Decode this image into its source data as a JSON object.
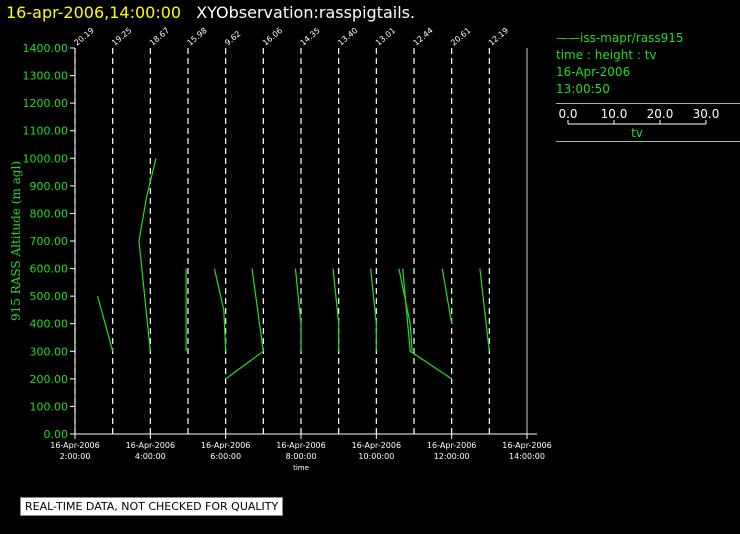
{
  "header": {
    "timestamp": "16-apr-2006,14:00:00",
    "title": "XYObservation:rasspigtails."
  },
  "legend": {
    "series_label": "iss-mapr/rass915",
    "mapping": "time : height : tv",
    "date": "16-Apr-2006",
    "time": "13:00:50",
    "scale_ticks": [
      "0.0",
      "10.0",
      "20.0",
      "30.0"
    ],
    "scale_label": "tv"
  },
  "disclaimer": "REAL-TIME DATA, NOT CHECKED FOR QUALITY",
  "colors": {
    "series": "#22dd22",
    "axis": "#ffffff",
    "timestamp": "#ffff00"
  },
  "chart_data": {
    "type": "line",
    "title": "",
    "xlabel": "time",
    "ylabel": "915 RASS Altitude (m agl)",
    "xlim_hours": [
      2.0,
      14.0
    ],
    "ylim": [
      0,
      1400
    ],
    "y_ticks": [
      "0.00",
      "100.00",
      "200.00",
      "300.00",
      "400.00",
      "500.00",
      "600.00",
      "700.00",
      "800.00",
      "900.00",
      "1000.00",
      "1100.00",
      "1200.00",
      "1300.00",
      "1400.00"
    ],
    "x_ticks": [
      {
        "hour": 2,
        "date": "16-Apr-2006",
        "time": "2:00:00"
      },
      {
        "hour": 4,
        "date": "16-Apr-2006",
        "time": "4:00:00"
      },
      {
        "hour": 6,
        "date": "16-Apr-2006",
        "time": "6:00:00"
      },
      {
        "hour": 8,
        "date": "16-Apr-2006",
        "time": "8:00:00"
      },
      {
        "hour": 10,
        "date": "16-Apr-2006",
        "time": "10:00:00"
      },
      {
        "hour": 12,
        "date": "16-Apr-2006",
        "time": "12:00:00"
      },
      {
        "hour": 14,
        "date": "16-Apr-2006",
        "time": "14:00:00"
      }
    ],
    "profile_times": [
      {
        "hour": 2.0,
        "label": "20.19"
      },
      {
        "hour": 3.0,
        "label": "19.25"
      },
      {
        "hour": 4.0,
        "label": "18.67"
      },
      {
        "hour": 5.0,
        "label": "15.98"
      },
      {
        "hour": 6.0,
        "label": "9.62"
      },
      {
        "hour": 7.0,
        "label": "16.06"
      },
      {
        "hour": 8.0,
        "label": "14.35"
      },
      {
        "hour": 9.0,
        "label": "13.40"
      },
      {
        "hour": 10.0,
        "label": "13.01"
      },
      {
        "hour": 11.0,
        "label": "12.44"
      },
      {
        "hour": 12.0,
        "label": "20.61"
      },
      {
        "hour": 13.0,
        "label": "12.19"
      }
    ],
    "series": [
      {
        "name": "iss-mapr/rass915",
        "segments": [
          [
            [
              2.0,
              500
            ],
            [
              2.0,
              300
            ]
          ],
          [
            [
              2.6,
              500
            ],
            [
              3.0,
              300
            ]
          ],
          [
            [
              3.7,
              700
            ],
            [
              3.9,
              860
            ],
            [
              4.15,
              1000
            ]
          ],
          [
            [
              3.7,
              700
            ],
            [
              4.0,
              300
            ]
          ],
          [
            [
              4.95,
              600
            ],
            [
              4.95,
              300
            ]
          ],
          [
            [
              5.7,
              600
            ],
            [
              5.95,
              450
            ],
            [
              6.0,
              300
            ]
          ],
          [
            [
              6.0,
              200
            ],
            [
              7.0,
              300
            ]
          ],
          [
            [
              6.7,
              600
            ],
            [
              7.0,
              300
            ]
          ],
          [
            [
              7.85,
              600
            ],
            [
              8.0,
              400
            ],
            [
              8.0,
              300
            ]
          ],
          [
            [
              8.85,
              600
            ],
            [
              9.0,
              400
            ],
            [
              9.0,
              300
            ]
          ],
          [
            [
              9.85,
              600
            ],
            [
              10.0,
              400
            ],
            [
              10.0,
              300
            ]
          ],
          [
            [
              10.6,
              600
            ],
            [
              10.9,
              400
            ],
            [
              10.95,
              300
            ]
          ],
          [
            [
              10.7,
              600
            ],
            [
              10.9,
              300
            ],
            [
              12.0,
              200
            ]
          ],
          [
            [
              11.75,
              600
            ],
            [
              12.0,
              400
            ]
          ],
          [
            [
              12.75,
              600
            ],
            [
              13.0,
              300
            ]
          ]
        ]
      }
    ]
  }
}
